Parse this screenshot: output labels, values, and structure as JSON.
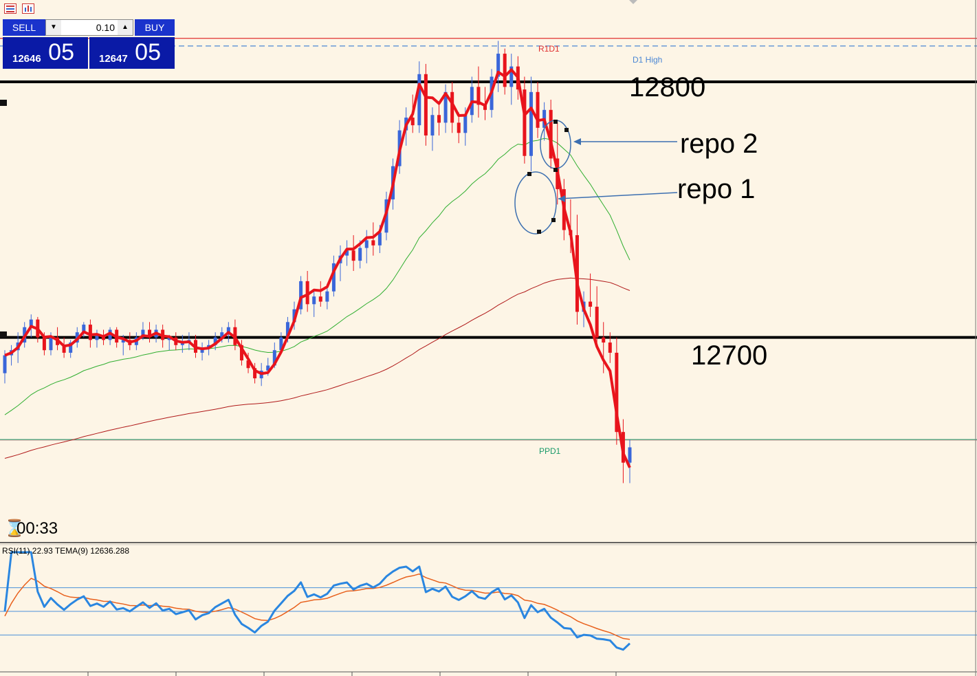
{
  "trade_panel": {
    "sell_label": "SELL",
    "buy_label": "BUY",
    "lot_value": "0.10",
    "sell_price_small": "12646",
    "sell_price_big": "05",
    "buy_price_small": "12647",
    "buy_price_big": "05"
  },
  "toolbar": {
    "icon1": "list-icon",
    "icon2": "chart-icon"
  },
  "timer": {
    "icon": "hourglass-icon",
    "value": "00:33"
  },
  "levels": {
    "r1d1": "R1D1",
    "d1high": "D1 High",
    "ppd1": "PPD1",
    "level_12800": "12800",
    "level_12700": "12700"
  },
  "annotations": {
    "repo2": "repo 2",
    "repo1": "repo 1"
  },
  "indicator": {
    "label": "RSI(11) 22.93 TEMA(9) 12636.288"
  },
  "colors": {
    "background": "#fdf5e6",
    "bull": "#3a66d9",
    "bear": "#e8141c",
    "tema": "#e8141c",
    "ma_green": "#2fae2f",
    "ma_darkred": "#b01818",
    "rsi": "#2a86e0",
    "rsi_signal": "#e8601c",
    "r1d1": "#e03030",
    "d1high": "#4a86d4",
    "ppd1": "#1a9a6a"
  },
  "chart_data": {
    "type": "candlestick",
    "price_axis": {
      "ylim": [
        12620,
        12832
      ]
    },
    "horizontal_levels": [
      {
        "name": "R1D1",
        "value": 12817
      },
      {
        "name": "D1 High",
        "value": 12814
      },
      {
        "name": "12800",
        "value": 12800
      },
      {
        "name": "12700",
        "value": 12700
      },
      {
        "name": "PPD1",
        "value": 12660
      }
    ],
    "candles_ohlc": [
      [
        12686,
        12695,
        12682,
        12693
      ],
      [
        12693,
        12697,
        12689,
        12695
      ],
      [
        12695,
        12702,
        12690,
        12698
      ],
      [
        12698,
        12706,
        12696,
        12704
      ],
      [
        12704,
        12709,
        12700,
        12707
      ],
      [
        12707,
        12708,
        12698,
        12700
      ],
      [
        12700,
        12702,
        12693,
        12695
      ],
      [
        12695,
        12702,
        12693,
        12700
      ],
      [
        12700,
        12704,
        12695,
        12697
      ],
      [
        12697,
        12700,
        12692,
        12694
      ],
      [
        12694,
        12699,
        12692,
        12698
      ],
      [
        12698,
        12704,
        12696,
        12702
      ],
      [
        12702,
        12706,
        12700,
        12705
      ],
      [
        12705,
        12707,
        12696,
        12699
      ],
      [
        12699,
        12703,
        12696,
        12701
      ],
      [
        12701,
        12703,
        12697,
        12699
      ],
      [
        12699,
        12704,
        12697,
        12703
      ],
      [
        12703,
        12704,
        12696,
        12698
      ],
      [
        12698,
        12701,
        12693,
        12699
      ],
      [
        12699,
        12702,
        12695,
        12697
      ],
      [
        12697,
        12702,
        12695,
        12700
      ],
      [
        12700,
        12706,
        12699,
        12703
      ],
      [
        12703,
        12706,
        12698,
        12700
      ],
      [
        12700,
        12705,
        12698,
        12703
      ],
      [
        12703,
        12705,
        12696,
        12699
      ],
      [
        12699,
        12701,
        12695,
        12700
      ],
      [
        12700,
        12702,
        12695,
        12697
      ],
      [
        12697,
        12701,
        12694,
        12698
      ],
      [
        12698,
        12702,
        12695,
        12699
      ],
      [
        12699,
        12701,
        12692,
        12694
      ],
      [
        12694,
        12698,
        12691,
        12696
      ],
      [
        12696,
        12699,
        12693,
        12697
      ],
      [
        12697,
        12702,
        12695,
        12700
      ],
      [
        12700,
        12704,
        12698,
        12702
      ],
      [
        12702,
        12706,
        12698,
        12704
      ],
      [
        12704,
        12707,
        12695,
        12697
      ],
      [
        12697,
        12699,
        12689,
        12691
      ],
      [
        12691,
        12694,
        12686,
        12688
      ],
      [
        12688,
        12690,
        12682,
        12684
      ],
      [
        12684,
        12690,
        12681,
        12687
      ],
      [
        12687,
        12692,
        12685,
        12689
      ],
      [
        12689,
        12698,
        12688,
        12695
      ],
      [
        12695,
        12702,
        12694,
        12700
      ],
      [
        12700,
        12708,
        12698,
        12706
      ],
      [
        12706,
        12714,
        12703,
        12711
      ],
      [
        12711,
        12724,
        12709,
        12722
      ],
      [
        12722,
        12726,
        12710,
        12713
      ],
      [
        12713,
        12718,
        12708,
        12716
      ],
      [
        12716,
        12722,
        12712,
        12714
      ],
      [
        12714,
        12721,
        12711,
        12718
      ],
      [
        12718,
        12732,
        12716,
        12729
      ],
      [
        12729,
        12736,
        12722,
        12732
      ],
      [
        12732,
        12738,
        12728,
        12734
      ],
      [
        12734,
        12740,
        12726,
        12730
      ],
      [
        12730,
        12738,
        12727,
        12735
      ],
      [
        12735,
        12742,
        12729,
        12738
      ],
      [
        12738,
        12745,
        12732,
        12736
      ],
      [
        12736,
        12744,
        12733,
        12741
      ],
      [
        12741,
        12757,
        12738,
        12754
      ],
      [
        12754,
        12770,
        12750,
        12767
      ],
      [
        12767,
        12785,
        12764,
        12781
      ],
      [
        12781,
        12790,
        12775,
        12786
      ],
      [
        12786,
        12795,
        12780,
        12783
      ],
      [
        12783,
        12808,
        12780,
        12803
      ],
      [
        12803,
        12807,
        12775,
        12779
      ],
      [
        12779,
        12790,
        12773,
        12787
      ],
      [
        12787,
        12792,
        12779,
        12784
      ],
      [
        12784,
        12799,
        12780,
        12796
      ],
      [
        12796,
        12800,
        12780,
        12784
      ],
      [
        12784,
        12788,
        12776,
        12780
      ],
      [
        12780,
        12790,
        12775,
        12787
      ],
      [
        12787,
        12802,
        12784,
        12798
      ],
      [
        12798,
        12806,
        12786,
        12791
      ],
      [
        12791,
        12798,
        12785,
        12789
      ],
      [
        12789,
        12805,
        12786,
        12802
      ],
      [
        12802,
        12816,
        12796,
        12811
      ],
      [
        12811,
        12813,
        12795,
        12798
      ],
      [
        12798,
        12811,
        12791,
        12806
      ],
      [
        12806,
        12810,
        12793,
        12797
      ],
      [
        12797,
        12802,
        12768,
        12771
      ],
      [
        12771,
        12802,
        12765,
        12796
      ],
      [
        12796,
        12800,
        12778,
        12782
      ],
      [
        12782,
        12792,
        12777,
        12789
      ],
      [
        12789,
        12793,
        12766,
        12770
      ],
      [
        12770,
        12784,
        12752,
        12758
      ],
      [
        12758,
        12762,
        12738,
        12742
      ],
      [
        12742,
        12754,
        12733,
        12740
      ],
      [
        12740,
        12748,
        12705,
        12710
      ],
      [
        12710,
        12718,
        12704,
        12714
      ],
      [
        12714,
        12725,
        12708,
        12712
      ],
      [
        12712,
        12720,
        12696,
        12700
      ],
      [
        12700,
        12706,
        12686,
        12698
      ],
      [
        12698,
        12702,
        12690,
        12694
      ],
      [
        12694,
        12700,
        12658,
        12663
      ],
      [
        12663,
        12668,
        12643,
        12651
      ],
      [
        12651,
        12660,
        12643,
        12657
      ]
    ],
    "indicator": {
      "name": "RSI(11)",
      "value": 22.93,
      "levels": [
        70,
        50,
        30
      ]
    },
    "tema": {
      "name": "TEMA(9)",
      "value": 12636.288
    }
  }
}
